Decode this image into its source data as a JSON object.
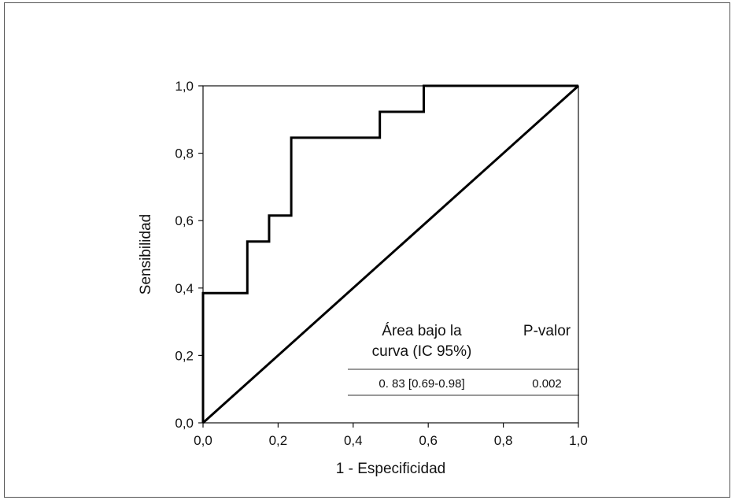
{
  "chart_data": {
    "type": "line",
    "xlabel": "1 - Especificidad",
    "ylabel": "Sensibilidad",
    "xlim": [
      0,
      1
    ],
    "ylim": [
      0,
      1
    ],
    "xticks": [
      "0,0",
      "0,2",
      "0,4",
      "0,6",
      "0,8",
      "1,0"
    ],
    "yticks": [
      "0,0",
      "0,2",
      "0,4",
      "0,6",
      "0,8",
      "1,0"
    ],
    "grid": false,
    "series": [
      {
        "role": "roc-curve",
        "x": [
          0,
          0,
          0.118,
          0.118,
          0.176,
          0.176,
          0.235,
          0.235,
          0.471,
          0.471,
          0.588,
          0.588,
          1.0
        ],
        "y": [
          0,
          0.385,
          0.385,
          0.538,
          0.538,
          0.615,
          0.615,
          0.846,
          0.846,
          0.923,
          0.923,
          1.0,
          1.0
        ]
      },
      {
        "role": "reference-diagonal",
        "x": [
          0,
          1
        ],
        "y": [
          0,
          1
        ]
      }
    ],
    "annotation_table": {
      "header_col1": [
        "Área bajo la",
        "curva (IC 95%)"
      ],
      "header_col2": "P-valor",
      "value_col1": "0. 83 [0.69-0.98]",
      "value_col2": "0.002"
    },
    "colors": {
      "line": "#000000",
      "axis": "#111111",
      "frame": "#555555"
    }
  }
}
